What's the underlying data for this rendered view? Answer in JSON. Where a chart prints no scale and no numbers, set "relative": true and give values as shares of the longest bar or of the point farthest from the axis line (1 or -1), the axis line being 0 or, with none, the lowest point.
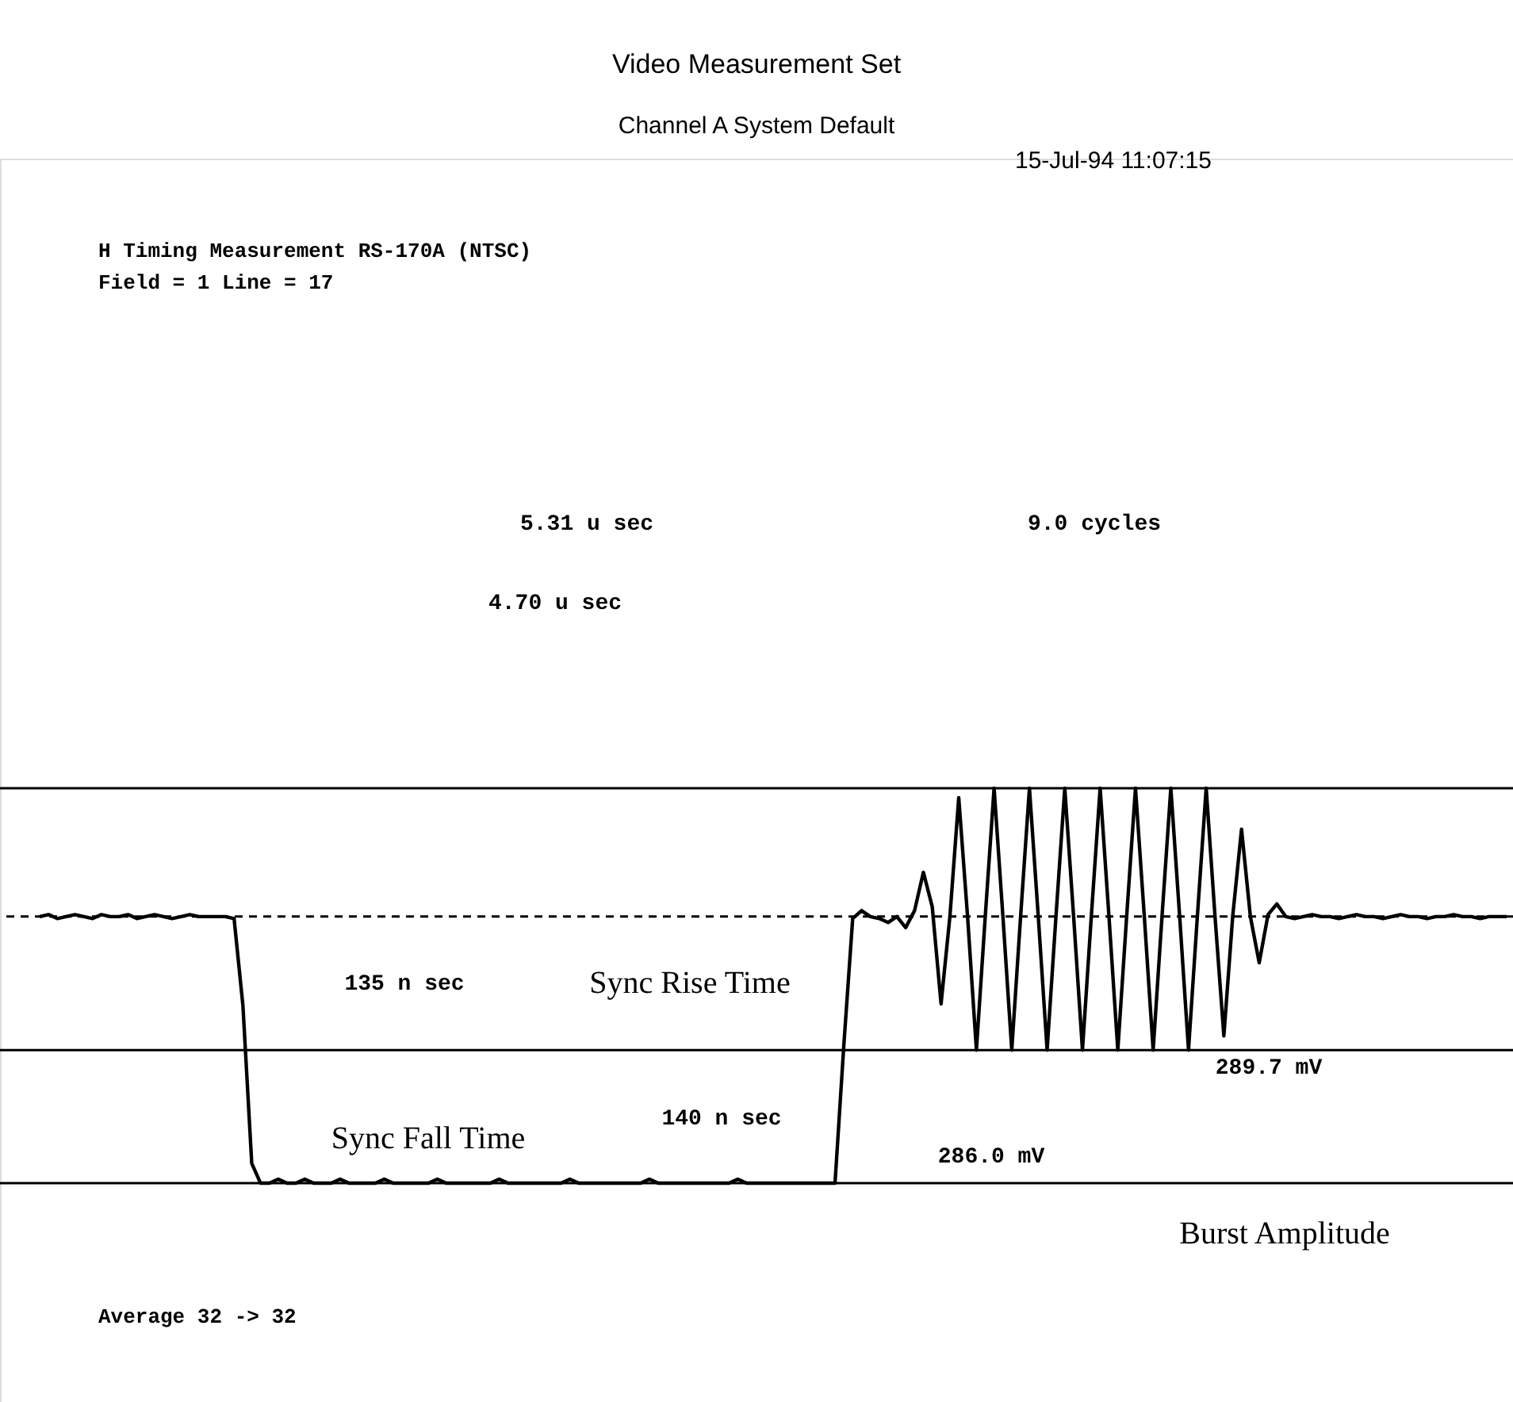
{
  "chart_data": {
    "type": "line",
    "relative": true,
    "title": "Video Measurement Set",
    "subtitle": "Channel A  System Default",
    "categories": [
      null,
      null,
      null,
      null,
      null,
      null,
      null,
      null,
      null,
      null,
      null,
      null,
      null,
      null,
      null,
      null,
      null,
      null,
      null,
      null,
      null,
      null,
      null,
      null,
      null,
      null,
      null,
      null,
      null,
      null,
      null,
      null,
      null,
      null,
      null,
      null,
      null,
      null,
      null,
      null,
      null,
      null,
      null,
      null,
      null,
      null,
      null,
      null,
      null,
      null,
      null,
      null,
      null,
      null,
      null,
      null,
      null,
      null,
      null,
      null,
      null,
      null,
      null,
      null,
      null,
      null,
      null,
      null,
      null,
      null,
      null,
      null,
      null,
      null,
      null,
      null,
      null,
      null,
      null,
      null,
      null,
      null,
      null,
      null,
      null,
      null,
      null,
      null,
      null,
      null,
      null,
      null,
      null,
      null,
      null,
      null,
      null,
      null,
      null,
      null,
      null,
      null,
      null,
      null,
      null,
      null,
      null,
      null,
      null,
      null,
      null,
      null,
      null,
      null,
      null,
      null,
      null,
      null,
      null,
      null,
      null,
      null,
      null,
      null,
      null,
      null,
      null,
      null,
      null,
      null,
      null,
      null,
      null,
      null,
      null,
      null,
      null,
      null,
      null,
      null,
      null,
      null,
      null,
      null,
      null,
      null,
      null,
      null,
      null,
      null,
      null,
      null,
      null,
      null,
      null,
      null,
      null,
      null,
      null,
      null,
      null,
      null,
      null,
      null,
      null,
      null,
      null
    ],
    "series": [
      {
        "color": "#000000",
        "values": [
          0.675,
          0.68,
          0.67,
          0.675,
          0.68,
          0.675,
          0.67,
          0.68,
          0.675,
          0.675,
          0.68,
          0.67,
          0.675,
          0.68,
          0.675,
          0.67,
          0.675,
          0.68,
          0.675,
          0.675,
          0.675,
          0.675,
          0.67,
          0.45,
          0.05,
          0,
          0,
          0.01,
          0,
          0,
          0.01,
          0,
          0,
          0,
          0.01,
          0,
          0,
          0,
          0,
          0.01,
          0,
          0,
          0,
          0,
          0,
          0.01,
          0,
          0,
          0,
          0,
          0,
          0,
          0.01,
          0,
          0,
          0,
          0,
          0,
          0,
          0,
          0.01,
          0,
          0,
          0,
          0,
          0,
          0,
          0,
          0,
          0.01,
          0,
          0,
          0,
          0,
          0,
          0,
          0,
          0,
          0,
          0.01,
          0,
          0,
          0,
          0,
          0,
          0,
          0,
          0,
          0,
          0,
          0,
          0.35,
          0.67,
          0.69,
          0.675,
          0.67,
          0.66,
          0.675,
          0.647,
          0.69,
          0.787,
          0.7,
          0.454,
          0.675,
          0.976,
          0.675,
          0.337,
          0.675,
          1,
          0.675,
          0.337,
          0.675,
          1,
          0.675,
          0.337,
          0.675,
          1,
          0.675,
          0.337,
          0.675,
          1,
          0.675,
          0.337,
          0.675,
          1,
          0.675,
          0.337,
          0.675,
          1,
          0.675,
          0.337,
          0.675,
          1,
          0.675,
          0.373,
          0.675,
          0.896,
          0.675,
          0.558,
          0.68,
          0.707,
          0.675,
          0.67,
          0.675,
          0.68,
          0.675,
          0.675,
          0.67,
          0.675,
          0.68,
          0.675,
          0.675,
          0.67,
          0.675,
          0.68,
          0.675,
          0.675,
          0.67,
          0.675,
          0.675,
          0.68,
          0.675,
          0.675,
          0.67,
          0.675,
          0.675,
          0.675
        ]
      }
    ],
    "ref_lines": [
      {
        "axis": "y",
        "value": 0.675,
        "line_style": "dashed",
        "color": "#000000"
      },
      {
        "axis": "y",
        "value": 1,
        "line_style": "solid",
        "color": "#000000"
      },
      {
        "axis": "y",
        "value": 0.337,
        "line_style": "solid",
        "color": "#000000"
      },
      {
        "axis": "y",
        "value": 0,
        "line_style": "solid",
        "color": "#000000"
      }
    ],
    "annotations": [
      "15-Jul-94  11:07:15",
      "H Timing Measurement  RS-170A  (NTSC)",
      "Field = 1 Line =  17",
      "5.31 u sec",
      "4.70 u sec",
      "9.0 cycles",
      "135 n sec",
      "Sync Rise Time",
      "140 n sec",
      "Sync Fall Time",
      "286.0 mV",
      "289.7 mV",
      "Burst Amplitude",
      "Average  32 ->  32"
    ],
    "legend": false,
    "line_style": "solid"
  }
}
